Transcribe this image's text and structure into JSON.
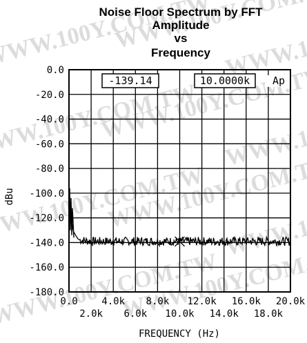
{
  "chart_data": {
    "type": "line",
    "title": [
      "Noise Floor Spectrum by FFT",
      "Amplitude",
      "vs",
      "Frequency"
    ],
    "xlabel": "FREQUENCY (Hz)",
    "ylabel": "dBu",
    "xlim": [
      0,
      20000
    ],
    "ylim": [
      -180,
      0
    ],
    "x_ticks": [
      0,
      4000,
      8000,
      12000,
      16000,
      20000
    ],
    "x_ticks_minor": [
      2000,
      6000,
      10000,
      14000,
      18000
    ],
    "x_tick_labels": [
      "0.0",
      "4.0k",
      "8.0k",
      "12.0k",
      "16.0k",
      "20.0k"
    ],
    "x_tick_labels_minor": [
      "2.0k",
      "6.0k",
      "10.0k",
      "14.0k",
      "18.0k"
    ],
    "y_ticks": [
      0,
      -20,
      -40,
      -60,
      -80,
      -100,
      -120,
      -140,
      -160,
      -180
    ],
    "y_tick_labels": [
      "0.0",
      "-20.0",
      "-40.0",
      "-60.0",
      "-80.0",
      "-100.0",
      "-120.0",
      "-140.0",
      "-160.0",
      "-180.0"
    ],
    "grid": true,
    "readout": {
      "level": "-139.14",
      "frequency": "10.0000k",
      "brand": "Ap"
    },
    "cursor": {
      "x": 10000,
      "y": -139.14
    },
    "series": [
      {
        "line_color": "#000000",
        "x": [
          20,
          60,
          100,
          150,
          200,
          300,
          400,
          600,
          800,
          1000,
          1500,
          2000,
          3000,
          4000,
          5000,
          6000,
          7000,
          8000,
          9000,
          10000,
          11000,
          12000,
          13000,
          14000,
          15000,
          16000,
          17000,
          18000,
          19000,
          20000
        ],
        "values": [
          -96,
          -103,
          -108,
          -115,
          -120,
          -126,
          -131,
          -134,
          -137,
          -138,
          -138.5,
          -139,
          -139,
          -139,
          -139,
          -139,
          -139,
          -139,
          -139,
          -139.1,
          -139,
          -139,
          -139,
          -139,
          -139,
          -139,
          -139,
          -139,
          -139,
          -139
        ]
      }
    ]
  },
  "watermark": "WWW.100Y.COM.TW"
}
